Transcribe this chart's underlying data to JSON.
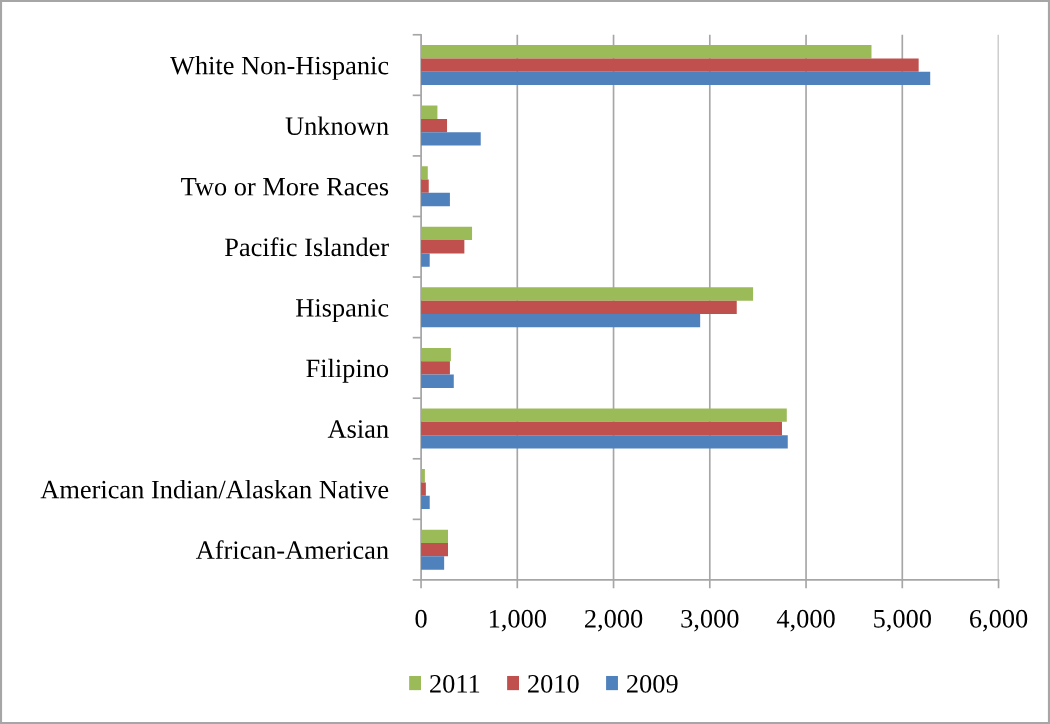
{
  "chart_data": {
    "type": "bar",
    "orientation": "horizontal",
    "categories": [
      "White Non-Hispanic",
      "Unknown",
      "Two or More Races",
      "Pacific Islander",
      "Hispanic",
      "Filipino",
      "Asian",
      "American Indian/Alaskan Native",
      "African-American"
    ],
    "series": [
      {
        "name": "2011",
        "color": "#9bbb59",
        "values": [
          4680,
          170,
          70,
          530,
          3450,
          310,
          3800,
          40,
          280
        ]
      },
      {
        "name": "2010",
        "color": "#c0504d",
        "values": [
          5170,
          270,
          80,
          450,
          3280,
          300,
          3750,
          50,
          280
        ]
      },
      {
        "name": "2009",
        "color": "#4f81bd",
        "values": [
          5290,
          620,
          300,
          90,
          2900,
          340,
          3810,
          90,
          240
        ]
      }
    ],
    "xlim": [
      0,
      6000
    ],
    "xticks": [
      0,
      {
        "value": 1000,
        "label": "1,000"
      },
      {
        "value": 2000,
        "label": "2,000"
      },
      {
        "value": 3000,
        "label": "3,000"
      },
      {
        "value": 4000,
        "label": "4,000"
      },
      {
        "value": 5000,
        "label": "5,000"
      },
      {
        "value": 6000,
        "label": "6,000"
      }
    ],
    "grid": "x",
    "legend": "bottom"
  }
}
